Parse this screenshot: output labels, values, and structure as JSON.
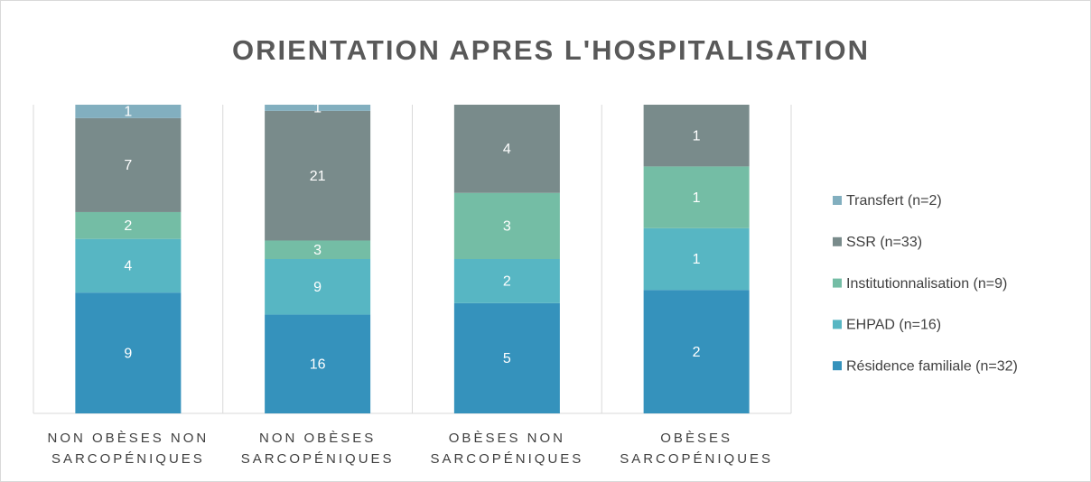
{
  "chart_data": {
    "type": "stacked_bar_100",
    "title": "ORIENTATION APRES L'HOSPITALISATION",
    "categories": [
      "NON OBÈSES NON SARCOPÉNIQUES",
      "NON OBÈSES SARCOPÉNIQUES",
      "OBÈSES NON SARCOPÉNIQUES",
      "OBÈSES SARCOPÉNIQUES"
    ],
    "series": [
      {
        "name": "Résidence familiale (n=32)",
        "color": "#3592bc",
        "values": [
          9,
          16,
          5,
          2
        ]
      },
      {
        "name": "EHPAD (n=16)",
        "color": "#57b6c3",
        "values": [
          4,
          9,
          2,
          1
        ]
      },
      {
        "name": "Institutionnalisation (n=9)",
        "color": "#74bda5",
        "values": [
          2,
          3,
          3,
          1
        ]
      },
      {
        "name": "SSR (n=33)",
        "color": "#798b8b",
        "values": [
          7,
          21,
          4,
          1
        ]
      },
      {
        "name": "Transfert (n=2)",
        "color": "#82afbf",
        "values": [
          1,
          1,
          null,
          null
        ]
      }
    ],
    "legend": "right"
  }
}
